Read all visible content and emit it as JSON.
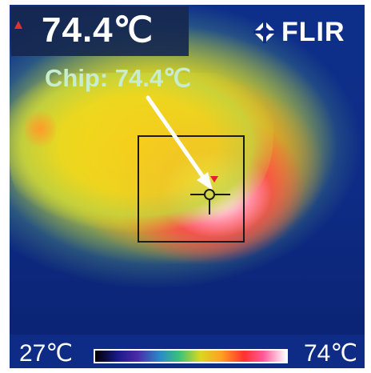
{
  "readout": {
    "temperature": "74.4℃",
    "alarm_indicator_color": "#e03030"
  },
  "brand": {
    "name": "FLIR",
    "icon": "flir-logo-icon"
  },
  "annotation": {
    "label": "Chip: 74.4℃",
    "color": "#c8ecd0",
    "arrow_color": "#ffffff"
  },
  "scale": {
    "min_label": "27℃",
    "max_label": "74℃",
    "palette": "iron"
  },
  "measurement": {
    "box_color": "#000000",
    "spot_icon": "crosshair-icon",
    "hotspot_icon": "hotspot-triangle-icon"
  },
  "colors": {
    "background_cold": "#0e2c86",
    "warm": "#f4d51c",
    "hot": "#ff3a55",
    "hottest": "#fff4f0"
  }
}
